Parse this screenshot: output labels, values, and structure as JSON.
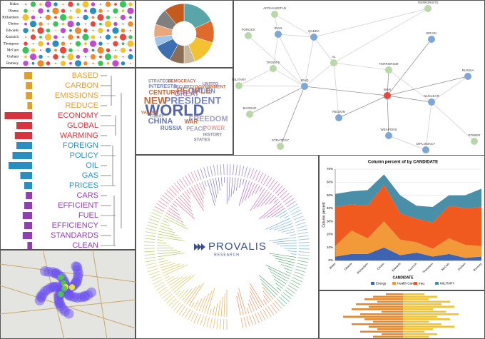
{
  "bubble_panel": {
    "names": [
      "Biden",
      "Obama",
      "Richardson",
      "Clinton",
      "Edwards",
      "Kucinich",
      "Thompson",
      "McCain",
      "Giuliani",
      "Romney"
    ]
  },
  "pie_panel": {
    "values": [
      18,
      12,
      14,
      6,
      8,
      10,
      5,
      7,
      9,
      11
    ],
    "colors": [
      "#5aa5a8",
      "#e06a2b",
      "#f2c230",
      "#c9b79c",
      "#8a6d57",
      "#3c6fb0",
      "#9fc5e8",
      "#e8a87c",
      "#7f7f7f",
      "#c45a1b"
    ]
  },
  "network_panel": {
    "nodes": [
      {
        "label": "AFGHANISTAN",
        "color": "#b9d7a8"
      },
      {
        "label": "TERRORISTS",
        "color": "#b9d7a8"
      },
      {
        "label": "FORCES",
        "color": "#b9d7a8"
      },
      {
        "label": "IRAN",
        "color": "#7fa7d6"
      },
      {
        "label": "QAEDA",
        "color": "#7fa7d6"
      },
      {
        "label": "ISRAEL",
        "color": "#7fa7d6"
      },
      {
        "label": "TROOPS",
        "color": "#b9d7a8"
      },
      {
        "label": "AL",
        "color": "#b9d7a8"
      },
      {
        "label": "TERRORISM",
        "color": "#b9d7a8"
      },
      {
        "label": "MILITARY",
        "color": "#b9d7a8"
      },
      {
        "label": "IRAQ",
        "color": "#7fa7d6"
      },
      {
        "label": "RUSSIA",
        "color": "#7fa7d6"
      },
      {
        "label": "WAR",
        "color": "#e8473f"
      },
      {
        "label": "NUCLEAR",
        "color": "#7fa7d6"
      },
      {
        "label": "BAGDAD",
        "color": "#b9d7a8"
      },
      {
        "label": "REGION",
        "color": "#7fa7d6"
      },
      {
        "label": "WEAPONS",
        "color": "#7fa7d6"
      },
      {
        "label": "STRATEGY",
        "color": "#b9d7a8"
      },
      {
        "label": "DIPLOMACY",
        "color": "#7fa7d6"
      },
      {
        "label": "POWER",
        "color": "#b9d7a8"
      }
    ]
  },
  "word_panel": {
    "words": [
      "BASED",
      "CARBON",
      "EMISSIONS",
      "REDUCE",
      "ECONOMY",
      "GLOBAL",
      "WARMING",
      "FOREIGN",
      "POLICY",
      "OIL",
      "GAS",
      "PRICES",
      "CARS",
      "EFFICIENT",
      "FUEL",
      "EFFICIENCY",
      "STANDARDS",
      "CLEAN"
    ],
    "values": [
      10,
      8,
      8,
      6,
      35,
      20,
      22,
      20,
      25,
      30,
      15,
      10,
      8,
      10,
      12,
      10,
      12,
      6
    ],
    "colors": [
      "#e0a030",
      "#e0a030",
      "#e0a030",
      "#e0a030",
      "#d6343f",
      "#d6343f",
      "#d6343f",
      "#2a8fc0",
      "#2a8fc0",
      "#2a8fc0",
      "#2a8fc0",
      "#2a8fc0",
      "#8e3fb0",
      "#8e3fb0",
      "#8e3fb0",
      "#8e3fb0",
      "#8e3fb0",
      "#8e3fb0"
    ]
  },
  "cloud_panel": {
    "words": [
      "WORLD",
      "PRESIDENT",
      "NEW",
      "PEOPLE",
      "CHINA",
      "FREEDOM",
      "NATION",
      "GREAT",
      "CENTURY",
      "INTERESTS",
      "SECURITY",
      "DEMOCRACY",
      "RUSSIA",
      "PEACE",
      "POWER",
      "STRATEGIC",
      "UNITED",
      "GOVERNMENT",
      "TODAY",
      "WAR",
      "HISTORY",
      "VALUES",
      "STATES"
    ]
  },
  "logo": {
    "name": "PROVALIS",
    "sub": "RESEARCH"
  },
  "chart_data": {
    "type": "area",
    "title": "Column percent of  by CANDIDATE",
    "x_label": "CANDIDATE",
    "y_label": "Column percent",
    "categories": [
      "Biden",
      "Obama",
      "Richardson",
      "Clinton",
      "Edwards",
      "Kucinich",
      "Thompson",
      "McCain",
      "Giuliani",
      "Romney"
    ],
    "series": [
      {
        "name": "Energy",
        "color": "#3e63b0",
        "values": [
          3,
          5,
          5,
          10,
          4,
          6,
          3,
          5,
          2,
          3
        ]
      },
      {
        "name": "Health Care",
        "color": "#f29a3a",
        "values": [
          8,
          18,
          12,
          20,
          12,
          8,
          6,
          12,
          10,
          8
        ]
      },
      {
        "name": "Iraq",
        "color": "#f05a1e",
        "values": [
          30,
          20,
          25,
          28,
          20,
          18,
          20,
          25,
          28,
          30
        ]
      },
      {
        "name": "MILITARY",
        "color": "#4a8fa8",
        "values": [
          10,
          10,
          12,
          8,
          14,
          10,
          12,
          8,
          10,
          14
        ]
      }
    ],
    "ylim": [
      0,
      70
    ],
    "yticks": [
      {
        "value": 0,
        "label": "0%"
      },
      {
        "value": 10,
        "label": "10%"
      },
      {
        "value": 20,
        "label": "20%"
      },
      {
        "value": 30,
        "label": "30%"
      },
      {
        "value": 40,
        "label": "40%"
      },
      {
        "value": 50,
        "label": "50%"
      },
      {
        "value": 60,
        "label": "60%"
      },
      {
        "value": 70,
        "label": "70%"
      }
    ],
    "grid": true
  },
  "butterfly_panel": {
    "left": [
      20,
      35,
      45,
      30,
      55,
      40,
      60,
      25,
      50,
      70,
      45,
      35,
      60,
      40,
      30,
      50,
      25,
      35
    ],
    "right": [
      25,
      40,
      30,
      55,
      45,
      60,
      35,
      50,
      65,
      40,
      55,
      30,
      45,
      60,
      35,
      25,
      40,
      30
    ],
    "colors": [
      "#e8872a",
      "#f2c230"
    ]
  }
}
